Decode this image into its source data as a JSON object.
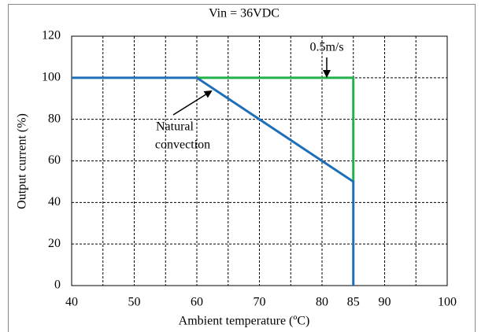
{
  "chart_data": {
    "type": "line",
    "title": "Vin = 36VDC",
    "x_label": "Ambient temperature (ºC)",
    "y_label": "Output current (%)",
    "xlim": [
      40,
      100
    ],
    "xticks": [
      40,
      50,
      60,
      70,
      80,
      85,
      90,
      100
    ],
    "x_minor_grid": [
      45,
      55,
      65,
      75,
      95
    ],
    "ylim": [
      0,
      120
    ],
    "yticks": [
      0,
      20,
      40,
      60,
      80,
      100,
      120
    ],
    "grid": true,
    "series": [
      {
        "name": "0.5m/s",
        "color": "#22b14c",
        "x": [
          60,
          85,
          85
        ],
        "values": [
          100,
          100,
          50
        ]
      },
      {
        "name": "Natural convection",
        "color": "#1f6fb8",
        "x": [
          40,
          60,
          85,
          85
        ],
        "values": [
          100,
          100,
          50,
          0
        ]
      }
    ],
    "annotations": [
      [
        "0.5m/s"
      ],
      [
        "Natural",
        "convection"
      ]
    ]
  }
}
